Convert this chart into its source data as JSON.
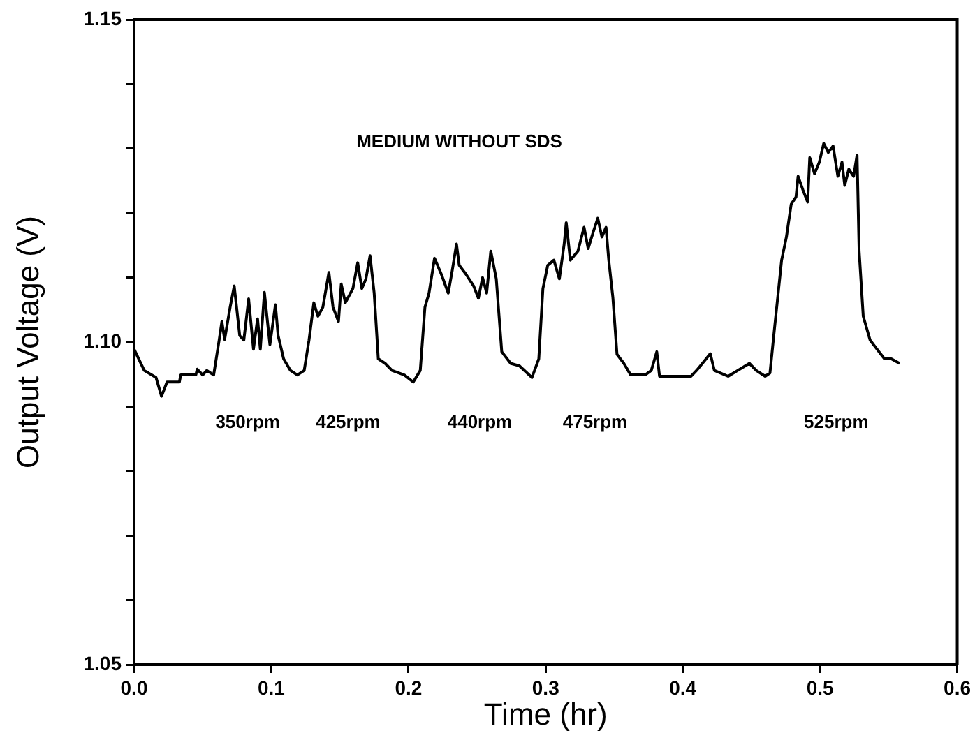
{
  "chart_data": {
    "type": "line",
    "xlabel": "Time (hr)",
    "ylabel": "Output Voltage (V)",
    "x": [
      0.0,
      0.0074,
      0.016,
      0.02,
      0.024,
      0.033,
      0.034,
      0.045,
      0.046,
      0.05,
      0.053,
      0.058,
      0.062,
      0.064,
      0.066,
      0.07,
      0.073,
      0.077,
      0.08,
      0.0835,
      0.087,
      0.09,
      0.092,
      0.095,
      0.099,
      0.103,
      0.105,
      0.109,
      0.114,
      0.119,
      0.124,
      0.1275,
      0.131,
      0.134,
      0.1376,
      0.142,
      0.145,
      0.149,
      0.151,
      0.154,
      0.1595,
      0.163,
      0.166,
      0.169,
      0.172,
      0.175,
      0.178,
      0.183,
      0.188,
      0.197,
      0.2035,
      0.2086,
      0.212,
      0.215,
      0.219,
      0.224,
      0.229,
      0.232,
      0.235,
      0.237,
      0.242,
      0.2475,
      0.251,
      0.254,
      0.257,
      0.26,
      0.264,
      0.268,
      0.2745,
      0.281,
      0.29,
      0.295,
      0.298,
      0.3015,
      0.306,
      0.31,
      0.3135,
      0.315,
      0.318,
      0.3235,
      0.328,
      0.331,
      0.3346,
      0.338,
      0.341,
      0.344,
      0.346,
      0.349,
      0.352,
      0.357,
      0.362,
      0.3725,
      0.377,
      0.381,
      0.383,
      0.406,
      0.41,
      0.42,
      0.423,
      0.433,
      0.44,
      0.4485,
      0.4535,
      0.46,
      0.4635,
      0.467,
      0.472,
      0.4755,
      0.479,
      0.4825,
      0.484,
      0.4875,
      0.491,
      0.4925,
      0.496,
      0.4995,
      0.5027,
      0.506,
      0.5095,
      0.513,
      0.516,
      0.518,
      0.521,
      0.5245,
      0.527,
      0.5285,
      0.5315,
      0.5365,
      0.5415,
      0.547,
      0.552,
      0.558
    ],
    "series": [
      {
        "color": "#000000",
        "values": [
          1.0989,
          1.0956,
          1.0945,
          1.0916,
          1.0938,
          1.0938,
          1.0949,
          1.0949,
          1.0958,
          1.0949,
          1.0956,
          1.0949,
          1.1003,
          1.1032,
          1.1004,
          1.1054,
          1.1087,
          1.101,
          1.1003,
          1.1067,
          1.0989,
          1.1036,
          1.0989,
          1.1077,
          1.0996,
          1.1058,
          1.101,
          1.0974,
          1.0956,
          1.0949,
          1.0956,
          1.1003,
          1.1061,
          1.104,
          1.1054,
          1.1108,
          1.1054,
          1.1032,
          1.109,
          1.1061,
          1.1083,
          1.1123,
          1.1083,
          1.1098,
          1.1134,
          1.1076,
          1.0974,
          1.0967,
          1.0956,
          1.0949,
          1.0938,
          1.0956,
          1.1054,
          1.1076,
          1.113,
          1.1105,
          1.1076,
          1.1112,
          1.1152,
          1.1119,
          1.1105,
          1.1087,
          1.1068,
          1.11,
          1.1076,
          1.1141,
          1.1098,
          1.0985,
          1.0967,
          1.0963,
          1.0945,
          1.0974,
          1.1083,
          1.1119,
          1.1127,
          1.1098,
          1.1152,
          1.1185,
          1.1127,
          1.1141,
          1.1178,
          1.1145,
          1.117,
          1.1192,
          1.1163,
          1.1178,
          1.1127,
          1.1069,
          1.0981,
          1.0967,
          1.0949,
          1.0949,
          1.0956,
          1.0985,
          1.0947,
          1.0947,
          1.0956,
          1.0982,
          1.0956,
          1.0947,
          1.0956,
          1.0967,
          1.0956,
          1.0947,
          1.0952,
          1.1025,
          1.1127,
          1.1163,
          1.1214,
          1.1225,
          1.1257,
          1.1236,
          1.1217,
          1.1286,
          1.1261,
          1.1279,
          1.1308,
          1.1294,
          1.1304,
          1.1257,
          1.1279,
          1.1243,
          1.1268,
          1.1257,
          1.129,
          1.1141,
          1.104,
          1.1003,
          1.0989,
          1.0974,
          1.0974,
          1.0967
        ]
      }
    ],
    "xlim": [
      0,
      0.6
    ],
    "xticks": [
      {
        "value": 0,
        "label": "0.0"
      },
      0.1,
      0.2,
      0.3,
      0.4,
      0.5,
      0.6
    ],
    "ylim": [
      1.05,
      1.15
    ],
    "yticks": [
      1.05,
      {
        "value": 1.06,
        "label": null
      },
      {
        "value": 1.07,
        "label": null
      },
      {
        "value": 1.08,
        "label": null
      },
      {
        "value": 1.09,
        "label": null
      },
      {
        "value": 1.1,
        "label": "1.10"
      },
      {
        "value": 1.11,
        "label": null
      },
      {
        "value": 1.12,
        "label": null
      },
      {
        "value": 1.13,
        "label": null
      },
      {
        "value": 1.14,
        "label": null
      },
      1.15
    ],
    "grid": false,
    "legend": false,
    "marker": "none",
    "line_style": "solid",
    "annotations": [
      "MEDIUM WITHOUT SDS",
      "350rpm",
      "425rpm",
      "440rpm",
      "475rpm",
      "525rpm"
    ]
  }
}
